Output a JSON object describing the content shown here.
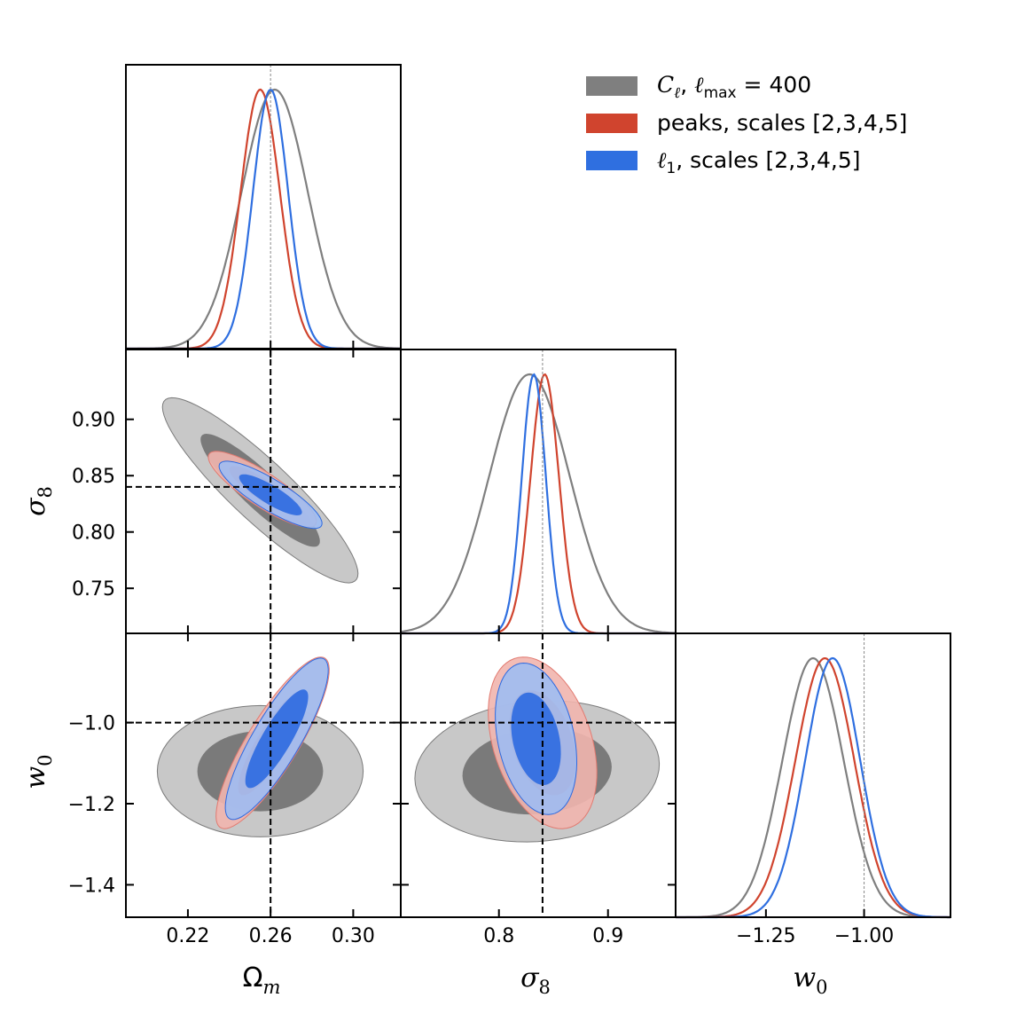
{
  "chart_data": {
    "type": "corner",
    "parameters": [
      {
        "key": "Om",
        "label": "Ωm",
        "label_main": "Ω",
        "label_sub": "m",
        "range": [
          0.19,
          0.323
        ],
        "ticks": [
          "0.22",
          "0.26",
          "0.30"
        ],
        "tick_values": [
          0.22,
          0.26,
          0.3
        ],
        "truth": 0.26
      },
      {
        "key": "s8",
        "label": "σ8",
        "label_main": "σ",
        "label_sub": "8",
        "range": [
          0.71,
          0.962
        ],
        "ticks": [
          "0.8",
          "0.9"
        ],
        "tick_values": [
          0.8,
          0.9
        ],
        "ticks_y": [
          "0.75",
          "0.80",
          "0.85",
          "0.90"
        ],
        "tick_values_y": [
          0.75,
          0.8,
          0.85,
          0.9
        ],
        "truth": 0.84
      },
      {
        "key": "w0",
        "label": "w0",
        "label_main": "w",
        "label_sub": "0",
        "range": [
          -1.48,
          -0.78
        ],
        "ticks": [
          "−1.25",
          "−1.00"
        ],
        "tick_values": [
          -1.25,
          -1.0
        ],
        "ticks_y": [
          "−1.4",
          "−1.2",
          "−1.0"
        ],
        "tick_values_y": [
          -1.4,
          -1.2,
          -1.0
        ],
        "truth": -1.0
      }
    ],
    "series": [
      {
        "name": "C_ell_lmax_400",
        "legend_main": "C",
        "legend_sub": "ℓ",
        "legend_rest": ", ",
        "legend_lmax": "ℓ",
        "legend_lmax_sub": "max",
        "legend_eq": " = 400",
        "color": "#7f7f7f",
        "fill_inner": "#7a7a7a",
        "fill_outer": "#c8c8c8",
        "marginals": {
          "Om": {
            "mean": 0.262,
            "sigma": 0.016
          },
          "s8": {
            "mean": 0.828,
            "sigma": 0.037
          },
          "w0": {
            "mean": -1.13,
            "sigma": 0.078
          }
        },
        "contours": {
          "Om_s8": {
            "mean": [
              0.255,
              0.837
            ],
            "sd": [
              0.019,
              0.033
            ],
            "rho": -0.9
          },
          "Om_w0": {
            "mean": [
              0.255,
              -1.12
            ],
            "sd": [
              0.02,
              0.065
            ],
            "rho": 0.0
          },
          "s8_w0": {
            "mean": [
              0.835,
              -1.12
            ],
            "sd": [
              0.045,
              0.07
            ],
            "rho": 0.1
          }
        }
      },
      {
        "name": "peaks_scales_2345",
        "legend_text": "peaks, scales [2,3,4,5]",
        "color": "#d0442e",
        "fill_inner": "#e27a70",
        "fill_outer": "#f1b5ae",
        "marginals": {
          "Om": {
            "mean": 0.255,
            "sigma": 0.0095
          },
          "s8": {
            "mean": 0.842,
            "sigma": 0.013
          },
          "w0": {
            "mean": -1.1,
            "sigma": 0.075
          }
        },
        "contours": {
          "Om_s8": {
            "mean": [
              0.256,
              0.838
            ],
            "sd": [
              0.0105,
              0.0135
            ],
            "rho": -0.85
          },
          "Om_w0": {
            "mean": [
              0.261,
              -1.05
            ],
            "sd": [
              0.011,
              0.085
            ],
            "rho": 0.85
          },
          "s8_w0": {
            "mean": [
              0.84,
              -1.05
            ],
            "sd": [
              0.02,
              0.085
            ],
            "rho": -0.35
          }
        }
      },
      {
        "name": "ell1_scales_2345",
        "legend_main": "ℓ",
        "legend_sub": "1",
        "legend_rest": ", scales [2,3,4,5]",
        "color": "#2f6fe0",
        "fill_inner": "#2d6ae0",
        "fill_outer": "#9fbdf2",
        "marginals": {
          "Om": {
            "mean": 0.26,
            "sigma": 0.0085
          },
          "s8": {
            "mean": 0.832,
            "sigma": 0.011
          },
          "w0": {
            "mean": -1.08,
            "sigma": 0.07
          }
        },
        "contours": {
          "Om_s8": {
            "mean": [
              0.26,
              0.833
            ],
            "sd": [
              0.01,
              0.012
            ],
            "rho": -0.85
          },
          "Om_w0": {
            "mean": [
              0.263,
              -1.04
            ],
            "sd": [
              0.01,
              0.08
            ],
            "rho": 0.85
          },
          "s8_w0": {
            "mean": [
              0.834,
              -1.04
            ],
            "sd": [
              0.015,
              0.075
            ],
            "rho": -0.3
          }
        }
      }
    ],
    "legend_position": "top-right"
  }
}
